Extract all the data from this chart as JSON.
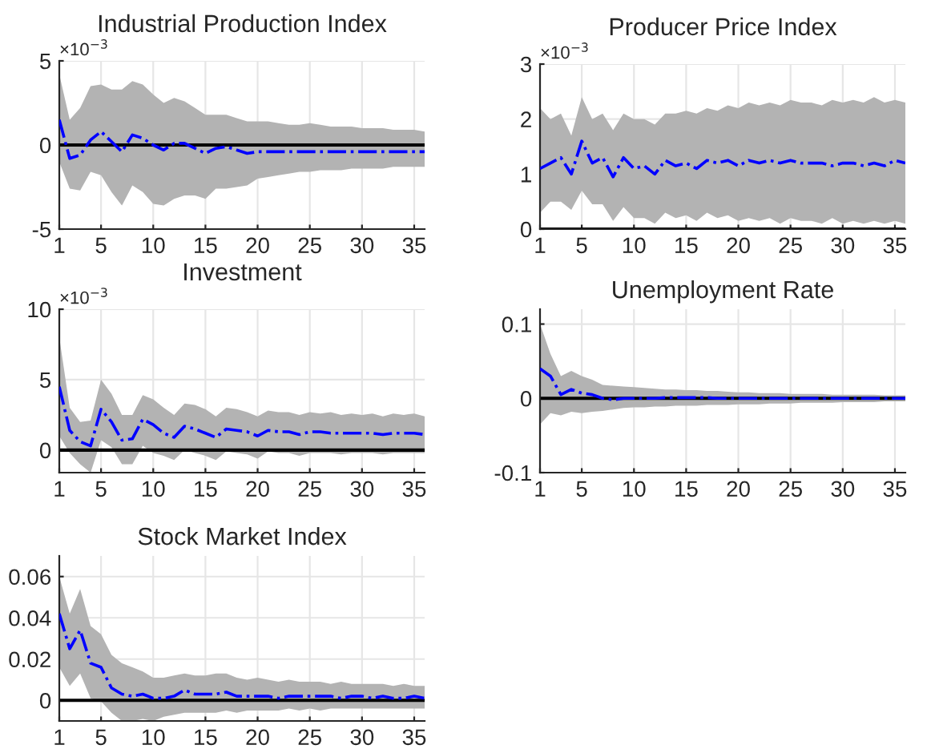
{
  "chart_data": [
    {
      "type": "line",
      "title": "Industrial Production Index",
      "annotations": [
        "×10$^{−3}$"
      ],
      "x": [
        1,
        2,
        3,
        4,
        5,
        6,
        7,
        8,
        9,
        10,
        11,
        12,
        13,
        14,
        15,
        16,
        17,
        18,
        19,
        20,
        21,
        22,
        23,
        24,
        25,
        26,
        27,
        28,
        29,
        30,
        31,
        32,
        33,
        34,
        35,
        36
      ],
      "series": [
        {
          "color": "#0000ff",
          "values": [
            1.5,
            -0.8,
            -0.6,
            0.3,
            0.8,
            0.2,
            -0.4,
            0.6,
            0.4,
            0.0,
            -0.3,
            0.1,
            0.1,
            -0.2,
            -0.5,
            -0.2,
            -0.1,
            -0.3,
            -0.5,
            -0.4,
            -0.4,
            -0.4,
            -0.4,
            -0.4,
            -0.4,
            -0.4,
            -0.4,
            -0.4,
            -0.4,
            -0.4,
            -0.4,
            -0.4,
            -0.4,
            -0.4,
            -0.4,
            -0.4
          ],
          "upper": [
            4.2,
            1.5,
            2.2,
            3.5,
            3.6,
            3.3,
            3.3,
            3.8,
            3.6,
            3.0,
            2.5,
            2.8,
            2.6,
            2.2,
            1.8,
            1.8,
            1.8,
            1.6,
            1.4,
            1.4,
            1.4,
            1.3,
            1.2,
            1.2,
            1.3,
            1.2,
            1.1,
            1.1,
            1.1,
            1.0,
            1.0,
            1.0,
            0.9,
            0.9,
            0.9,
            0.8
          ],
          "lower": [
            -1.0,
            -2.6,
            -2.7,
            -1.6,
            -1.8,
            -2.8,
            -3.6,
            -2.4,
            -2.8,
            -3.5,
            -3.6,
            -3.2,
            -3.0,
            -3.0,
            -3.2,
            -2.6,
            -2.6,
            -2.5,
            -2.4,
            -2.0,
            -1.9,
            -1.8,
            -1.7,
            -1.6,
            -1.6,
            -1.5,
            -1.5,
            -1.5,
            -1.4,
            -1.4,
            -1.4,
            -1.4,
            -1.3,
            -1.3,
            -1.3,
            -1.3
          ]
        }
      ],
      "xlim": [
        1,
        36
      ],
      "xticks": [
        1,
        5,
        10,
        15,
        20,
        25,
        30,
        35
      ],
      "ylim": [
        -5,
        5
      ],
      "yticks": [
        -5,
        0,
        5
      ],
      "ref_lines": [
        {
          "axis": "y",
          "value": 0,
          "color": "#000000"
        }
      ],
      "grid": true,
      "line_style": "dashdot",
      "marker": "none"
    },
    {
      "type": "line",
      "title": "Producer Price Index",
      "annotations": [
        "×10$^{−3}$"
      ],
      "x": [
        1,
        2,
        3,
        4,
        5,
        6,
        7,
        8,
        9,
        10,
        11,
        12,
        13,
        14,
        15,
        16,
        17,
        18,
        19,
        20,
        21,
        22,
        23,
        24,
        25,
        26,
        27,
        28,
        29,
        30,
        31,
        32,
        33,
        34,
        35,
        36
      ],
      "series": [
        {
          "color": "#0000ff",
          "values": [
            1.1,
            1.2,
            1.3,
            1.0,
            1.6,
            1.2,
            1.3,
            0.95,
            1.3,
            1.1,
            1.15,
            1.0,
            1.25,
            1.15,
            1.2,
            1.1,
            1.25,
            1.2,
            1.25,
            1.15,
            1.25,
            1.2,
            1.25,
            1.2,
            1.25,
            1.2,
            1.2,
            1.2,
            1.15,
            1.2,
            1.2,
            1.15,
            1.2,
            1.15,
            1.25,
            1.2
          ],
          "upper": [
            2.2,
            2.0,
            2.1,
            1.7,
            2.4,
            2.0,
            2.1,
            1.8,
            2.1,
            2.0,
            2.0,
            1.9,
            2.1,
            2.1,
            2.15,
            2.1,
            2.2,
            2.15,
            2.25,
            2.2,
            2.3,
            2.25,
            2.3,
            2.25,
            2.35,
            2.3,
            2.3,
            2.25,
            2.35,
            2.3,
            2.35,
            2.3,
            2.4,
            2.3,
            2.35,
            2.3
          ],
          "lower": [
            0.3,
            0.5,
            0.5,
            0.35,
            0.7,
            0.45,
            0.45,
            0.15,
            0.4,
            0.2,
            0.2,
            0.1,
            0.3,
            0.2,
            0.25,
            0.15,
            0.3,
            0.2,
            0.25,
            0.15,
            0.2,
            0.15,
            0.2,
            0.1,
            0.2,
            0.15,
            0.15,
            0.1,
            0.2,
            0.1,
            0.15,
            0.1,
            0.15,
            0.1,
            0.15,
            0.1
          ]
        }
      ],
      "xlim": [
        1,
        36
      ],
      "xticks": [
        1,
        5,
        10,
        15,
        20,
        25,
        30,
        35
      ],
      "ylim": [
        0,
        3
      ],
      "yticks": [
        0,
        1,
        2,
        3
      ],
      "ref_lines": [
        {
          "axis": "y",
          "value": 0,
          "color": "#000000"
        }
      ],
      "grid": true,
      "line_style": "dashdot",
      "marker": "none"
    },
    {
      "type": "line",
      "title": "Investment",
      "annotations": [
        "×10$^{−3}$"
      ],
      "x": [
        1,
        2,
        3,
        4,
        5,
        6,
        7,
        8,
        9,
        10,
        11,
        12,
        13,
        14,
        15,
        16,
        17,
        18,
        19,
        20,
        21,
        22,
        23,
        24,
        25,
        26,
        27,
        28,
        29,
        30,
        31,
        32,
        33,
        34,
        35,
        36
      ],
      "series": [
        {
          "color": "#0000ff",
          "values": [
            4.5,
            1.4,
            0.6,
            0.3,
            2.9,
            2.0,
            0.7,
            0.8,
            2.2,
            1.8,
            1.2,
            0.9,
            1.7,
            1.5,
            1.2,
            0.9,
            1.5,
            1.4,
            1.3,
            1.0,
            1.4,
            1.3,
            1.3,
            1.1,
            1.3,
            1.3,
            1.2,
            1.2,
            1.2,
            1.2,
            1.2,
            1.1,
            1.2,
            1.2,
            1.2,
            1.1
          ],
          "upper": [
            8.0,
            3.0,
            2.0,
            2.1,
            5.0,
            4.0,
            2.5,
            2.5,
            3.9,
            3.6,
            3.0,
            2.5,
            3.3,
            3.2,
            2.9,
            2.4,
            3.0,
            2.9,
            2.7,
            2.4,
            2.8,
            2.7,
            2.7,
            2.5,
            2.7,
            2.6,
            2.7,
            2.5,
            2.6,
            2.5,
            2.6,
            2.4,
            2.6,
            2.5,
            2.6,
            2.4
          ],
          "lower": [
            1.0,
            -0.2,
            -1.0,
            -1.6,
            0.7,
            0.2,
            -1.0,
            -1.0,
            0.3,
            -0.2,
            -0.4,
            -0.7,
            0.0,
            -0.2,
            -0.4,
            -0.7,
            -0.1,
            -0.2,
            -0.3,
            -0.6,
            -0.1,
            -0.2,
            -0.2,
            -0.4,
            -0.2,
            -0.2,
            -0.2,
            -0.3,
            -0.2,
            -0.2,
            -0.2,
            -0.3,
            -0.2,
            -0.2,
            -0.2,
            -0.2
          ]
        }
      ],
      "xlim": [
        1,
        36
      ],
      "xticks": [
        1,
        5,
        10,
        15,
        20,
        25,
        30,
        35
      ],
      "ylim": [
        -1.6,
        10
      ],
      "yticks": [
        0,
        5,
        10
      ],
      "ref_lines": [
        {
          "axis": "y",
          "value": 0,
          "color": "#000000"
        }
      ],
      "grid": true,
      "line_style": "dashdot",
      "marker": "none"
    },
    {
      "type": "line",
      "title": "Unemployment Rate",
      "x": [
        1,
        2,
        3,
        4,
        5,
        6,
        7,
        8,
        9,
        10,
        11,
        12,
        13,
        14,
        15,
        16,
        17,
        18,
        19,
        20,
        21,
        22,
        23,
        24,
        25,
        26,
        27,
        28,
        29,
        30,
        31,
        32,
        33,
        34,
        35,
        36
      ],
      "series": [
        {
          "color": "#0000ff",
          "values": [
            0.04,
            0.03,
            0.005,
            0.012,
            0.007,
            0.005,
            0.0,
            -0.002,
            0.0,
            0.0,
            0.0,
            0.0,
            0.001,
            0.001,
            0.001,
            0.001,
            0.001,
            0.0,
            0.0,
            0.0,
            0.0,
            0.0,
            0.0,
            0.0,
            0.0,
            0.0,
            0.0,
            0.0,
            0.0,
            0.0,
            0.0,
            0.0,
            0.0,
            0.0,
            0.0,
            0.0
          ],
          "upper": [
            0.1,
            0.06,
            0.03,
            0.037,
            0.03,
            0.025,
            0.018,
            0.017,
            0.016,
            0.015,
            0.014,
            0.013,
            0.012,
            0.012,
            0.011,
            0.011,
            0.01,
            0.01,
            0.009,
            0.008,
            0.008,
            0.007,
            0.007,
            0.007,
            0.006,
            0.006,
            0.006,
            0.006,
            0.005,
            0.005,
            0.005,
            0.005,
            0.005,
            0.004,
            0.004,
            0.004
          ],
          "lower": [
            -0.035,
            -0.02,
            -0.023,
            -0.018,
            -0.02,
            -0.018,
            -0.017,
            -0.015,
            -0.013,
            -0.012,
            -0.012,
            -0.011,
            -0.011,
            -0.01,
            -0.01,
            -0.01,
            -0.009,
            -0.009,
            -0.009,
            -0.008,
            -0.008,
            -0.008,
            -0.007,
            -0.007,
            -0.007,
            -0.006,
            -0.006,
            -0.006,
            -0.006,
            -0.005,
            -0.005,
            -0.005,
            -0.005,
            -0.004,
            -0.004,
            -0.004
          ]
        }
      ],
      "xlim": [
        1,
        36
      ],
      "xticks": [
        1,
        5,
        10,
        15,
        20,
        25,
        30,
        35
      ],
      "ylim": [
        -0.1,
        0.12
      ],
      "yticks": [
        -0.1,
        0,
        0.1
      ],
      "ref_lines": [
        {
          "axis": "y",
          "value": 0,
          "color": "#000000"
        }
      ],
      "grid": true,
      "line_style": "dashdot",
      "marker": "none"
    },
    {
      "type": "line",
      "title": "Stock Market Index",
      "x": [
        1,
        2,
        3,
        4,
        5,
        6,
        7,
        8,
        9,
        10,
        11,
        12,
        13,
        14,
        15,
        16,
        17,
        18,
        19,
        20,
        21,
        22,
        23,
        24,
        25,
        26,
        27,
        28,
        29,
        30,
        31,
        32,
        33,
        34,
        35,
        36
      ],
      "series": [
        {
          "color": "#0000ff",
          "values": [
            0.042,
            0.025,
            0.034,
            0.018,
            0.016,
            0.006,
            0.003,
            0.002,
            0.003,
            0.001,
            0.001,
            0.002,
            0.005,
            0.003,
            0.003,
            0.003,
            0.004,
            0.002,
            0.002,
            0.002,
            0.002,
            0.001,
            0.002,
            0.002,
            0.002,
            0.002,
            0.002,
            0.001,
            0.002,
            0.002,
            0.001,
            0.002,
            0.001,
            0.001,
            0.002,
            0.001
          ],
          "upper": [
            0.06,
            0.042,
            0.054,
            0.036,
            0.032,
            0.022,
            0.018,
            0.016,
            0.014,
            0.011,
            0.011,
            0.012,
            0.013,
            0.012,
            0.012,
            0.013,
            0.013,
            0.011,
            0.01,
            0.011,
            0.01,
            0.009,
            0.01,
            0.009,
            0.009,
            0.009,
            0.008,
            0.009,
            0.008,
            0.008,
            0.008,
            0.008,
            0.007,
            0.008,
            0.007,
            0.007
          ],
          "lower": [
            0.016,
            0.007,
            0.013,
            0.001,
            -0.0005,
            -0.006,
            -0.01,
            -0.01,
            -0.009,
            -0.01,
            -0.008,
            -0.007,
            -0.006,
            -0.006,
            -0.006,
            -0.006,
            -0.005,
            -0.006,
            -0.005,
            -0.005,
            -0.005,
            -0.005,
            -0.004,
            -0.005,
            -0.004,
            -0.005,
            -0.004,
            -0.004,
            -0.004,
            -0.004,
            -0.004,
            -0.004,
            -0.004,
            -0.004,
            -0.004,
            -0.004
          ]
        }
      ],
      "xlim": [
        1,
        36
      ],
      "xticks": [
        1,
        5,
        10,
        15,
        20,
        25,
        30,
        35
      ],
      "ylim": [
        -0.01,
        0.07
      ],
      "yticks": [
        0,
        0.02,
        0.04,
        0.06
      ],
      "ref_lines": [
        {
          "axis": "y",
          "value": 0,
          "color": "#000000"
        }
      ],
      "grid": true,
      "line_style": "dashdot",
      "marker": "none"
    }
  ]
}
